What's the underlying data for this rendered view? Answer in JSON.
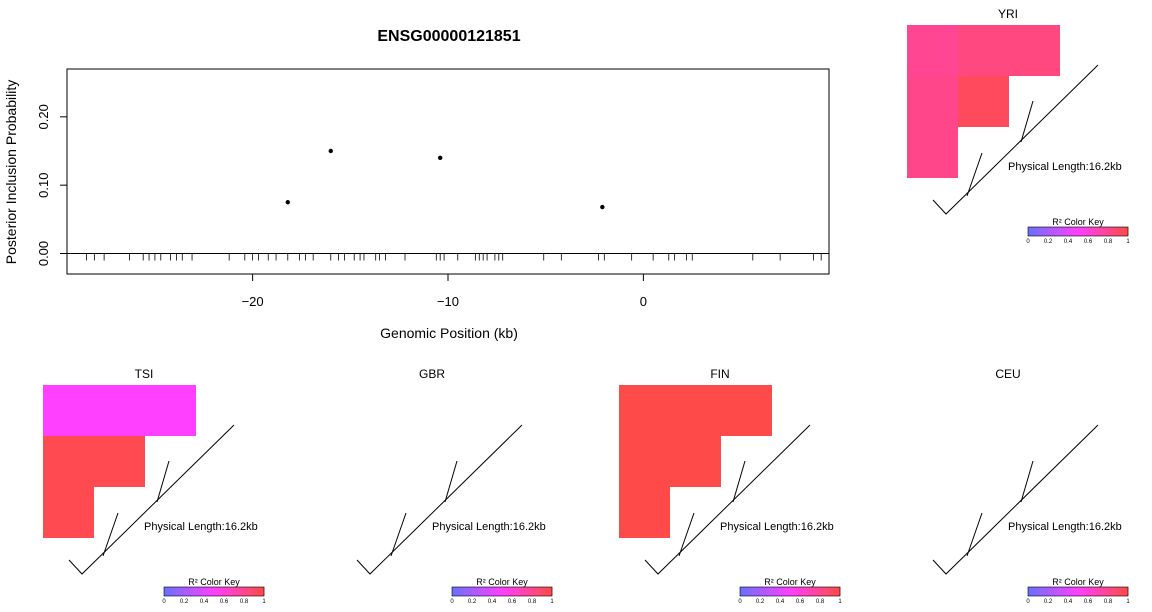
{
  "chart_data": [
    {
      "type": "scatter",
      "title": "ENSG00000121851",
      "xlabel": "Genomic Position (kb)",
      "ylabel": "Posterior Inclusion Probability",
      "xlim": [
        -29.5,
        9.5
      ],
      "ylim": [
        -0.03,
        0.27
      ],
      "x_ticks": [
        -20,
        -10,
        0
      ],
      "x_tick_labels": [
        "−20",
        "−10",
        "0"
      ],
      "y_ticks": [
        0.0,
        0.1,
        0.2
      ],
      "y_tick_labels": [
        "0.00",
        "0.10",
        "0.20"
      ],
      "grid": false,
      "points": [
        {
          "x": -18.2,
          "y": 0.075
        },
        {
          "x": -16.0,
          "y": 0.15
        },
        {
          "x": -10.4,
          "y": 0.14
        },
        {
          "x": -2.1,
          "y": 0.068
        }
      ],
      "snp_positions": [
        -28.5,
        -28.1,
        -27.6,
        -26.3,
        -25.6,
        -25.3,
        -25.0,
        -24.7,
        -24.2,
        -23.9,
        -23.6,
        -23.1,
        -21.2,
        -20.4,
        -20.0,
        -19.7,
        -19.2,
        -18.8,
        -18.2,
        -17.6,
        -17.3,
        -16.9,
        -16.0,
        -15.6,
        -15.3,
        -14.8,
        -14.5,
        -14.3,
        -13.7,
        -13.5,
        -13.2,
        -12.2,
        -10.6,
        -10.4,
        -10.2,
        -9.5,
        -8.6,
        -8.4,
        -8.2,
        -8.0,
        -7.6,
        -7.4,
        -7.2,
        -5.1,
        -4.2,
        -2.3,
        -2.0,
        -0.6,
        0.5,
        1.3,
        1.6,
        2.2,
        2.5,
        5.6,
        7.0,
        8.7,
        9.1
      ]
    },
    {
      "type": "heatmap",
      "population": "YRI",
      "physical_length": "Physical Length:16.2kb",
      "matrix": [
        [
          0.8,
          0.85
        ],
        [
          0.82,
          0.95
        ]
      ],
      "color_key": {
        "title": "R² Color Key",
        "ticks": [
          "0",
          "0.2",
          "0.4",
          "0.6",
          "0.8",
          "1"
        ],
        "low_color": "#6e6eff",
        "mid_color": "#ff40ff",
        "high_color": "#ff4a4a"
      }
    },
    {
      "type": "heatmap",
      "population": "TSI",
      "physical_length": "Physical Length:16.2kb",
      "matrix": [
        [
          0.5,
          0.5
        ],
        [
          0.98,
          0.98
        ]
      ],
      "color_key": {
        "title": "R² Color Key",
        "ticks": [
          "0",
          "0.2",
          "0.4",
          "0.6",
          "0.8",
          "1"
        ],
        "low_color": "#6e6eff",
        "mid_color": "#ff40ff",
        "high_color": "#ff4a4a"
      }
    },
    {
      "type": "heatmap",
      "population": "GBR",
      "physical_length": "Physical Length:16.2kb",
      "matrix": [],
      "color_key": {
        "title": "R² Color Key",
        "ticks": [
          "0",
          "0.2",
          "0.4",
          "0.6",
          "0.8",
          "1"
        ],
        "low_color": "#6e6eff",
        "mid_color": "#ff40ff",
        "high_color": "#ff4a4a"
      }
    },
    {
      "type": "heatmap",
      "population": "FIN",
      "physical_length": "Physical Length:16.2kb",
      "matrix": [
        [
          1.0,
          1.0
        ],
        [
          1.0,
          1.0
        ]
      ],
      "color_key": {
        "title": "R² Color Key",
        "ticks": [
          "0",
          "0.2",
          "0.4",
          "0.6",
          "0.8",
          "1"
        ],
        "low_color": "#6e6eff",
        "mid_color": "#ff40ff",
        "high_color": "#ff4a4a"
      }
    },
    {
      "type": "heatmap",
      "population": "CEU",
      "physical_length": "Physical Length:16.2kb",
      "matrix": [],
      "color_key": {
        "title": "R² Color Key",
        "ticks": [
          "0",
          "0.2",
          "0.4",
          "0.6",
          "0.8",
          "1"
        ],
        "low_color": "#6e6eff",
        "mid_color": "#ff40ff",
        "high_color": "#ff4a4a"
      }
    }
  ]
}
